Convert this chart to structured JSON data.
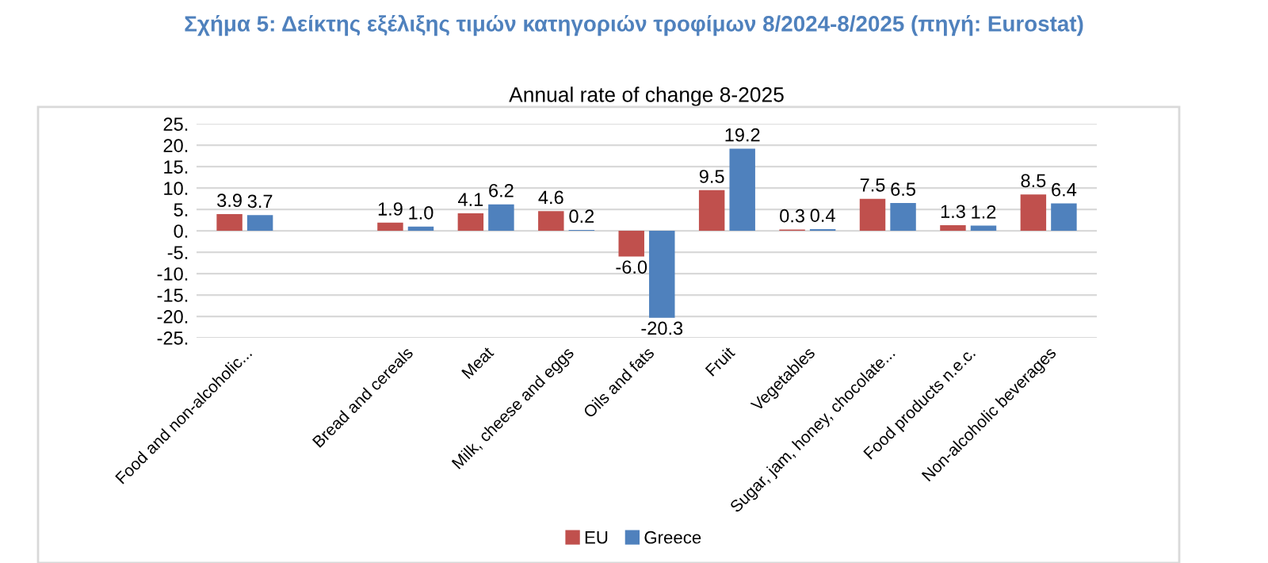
{
  "chart_data": {
    "type": "bar",
    "title": "Σχήμα 5: Δείκτης εξέλιξης τιμών κατηγοριών τροφίμων 8/2024-8/2025 (πηγή: Eurostat)",
    "subtitle": "Annual rate of change 8-2025",
    "categories": [
      "Food and non-alcoholic...",
      null,
      "Bread and cereals",
      "Meat",
      "Milk, cheese and eggs",
      "Oils and fats",
      "Fruit",
      "Vegetables",
      "Sugar, jam, honey, chocolate...",
      "Food products n.e.c.",
      "Non-alcoholic beverages"
    ],
    "series": [
      {
        "name": "EU",
        "color": "#c0504d",
        "values": [
          3.9,
          null,
          1.9,
          4.1,
          4.6,
          -6.0,
          9.5,
          0.3,
          7.5,
          1.3,
          8.5
        ],
        "value_labels": [
          "3.9",
          null,
          "1.9",
          "4.1",
          "4.6",
          "-6.0",
          "9.5",
          "0.3",
          "7.5",
          "1.3",
          "8.5"
        ]
      },
      {
        "name": "Greece",
        "color": "#4f81bd",
        "values": [
          3.7,
          null,
          1.0,
          6.2,
          0.2,
          -20.3,
          19.2,
          0.4,
          6.5,
          1.2,
          6.4
        ],
        "value_labels": [
          "3.7",
          null,
          "1.0",
          "6.2",
          "0.2",
          "-20.3",
          "19.2",
          "0.4",
          "6.5",
          "1.2",
          "6.4"
        ]
      }
    ],
    "ylim": [
      -25,
      25
    ],
    "yticks": [
      {
        "value": -25,
        "label": "-25."
      },
      {
        "value": -20,
        "label": "-20."
      },
      {
        "value": -15,
        "label": "-15."
      },
      {
        "value": -10,
        "label": "-10."
      },
      {
        "value": -5,
        "label": "-5."
      },
      {
        "value": 0,
        "label": "0."
      },
      {
        "value": 5,
        "label": "5."
      },
      {
        "value": 10,
        "label": "10."
      },
      {
        "value": 15,
        "label": "15."
      },
      {
        "value": 20,
        "label": "20."
      },
      {
        "value": 25,
        "label": "25."
      }
    ],
    "grid": "y",
    "legend": "bottom"
  }
}
